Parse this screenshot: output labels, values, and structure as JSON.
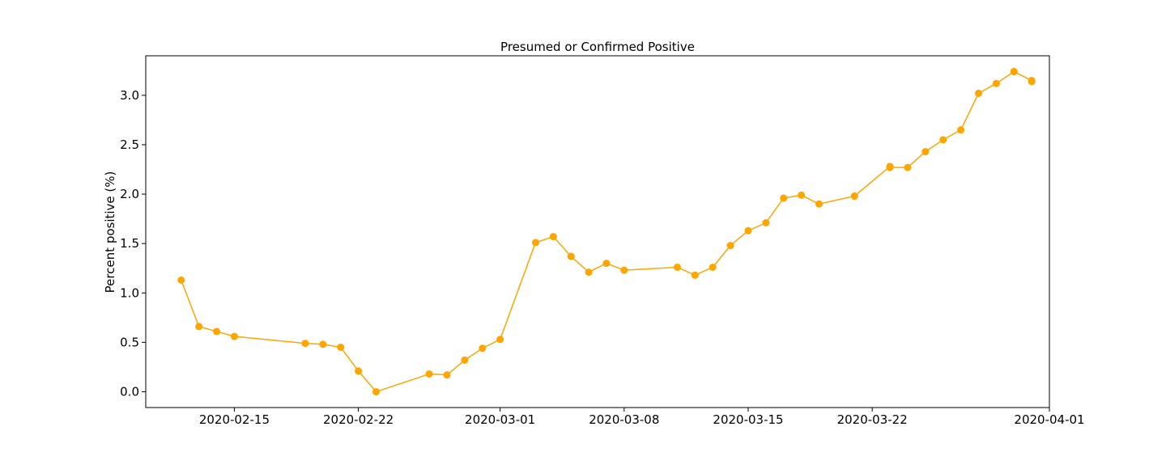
{
  "chart_data": {
    "type": "line",
    "title": "Presumed or Confirmed Positive",
    "xlabel": "",
    "ylabel": "Percent positive (%)",
    "x_axis_type": "date",
    "xlim": [
      "2020-02-10",
      "2020-04-01"
    ],
    "ylim": [
      -0.16,
      3.4
    ],
    "x_ticks": [
      "2020-02-15",
      "2020-02-22",
      "2020-03-01",
      "2020-03-08",
      "2020-03-15",
      "2020-03-22",
      "2020-04-01"
    ],
    "y_ticks": [
      "0.0",
      "0.5",
      "1.0",
      "1.5",
      "2.0",
      "2.5",
      "3.0"
    ],
    "grid": false,
    "legend": "none",
    "series": [
      {
        "color": "#ffa500",
        "marker": "circle",
        "x": [
          "2020-02-12",
          "2020-02-13",
          "2020-02-14",
          "2020-02-15",
          "2020-02-19",
          "2020-02-20",
          "2020-02-21",
          "2020-02-22",
          "2020-02-23",
          "2020-02-26",
          "2020-02-27",
          "2020-02-28",
          "2020-02-29",
          "2020-03-01",
          "2020-03-03",
          "2020-03-04",
          "2020-03-05",
          "2020-03-06",
          "2020-03-07",
          "2020-03-08",
          "2020-03-11",
          "2020-03-12",
          "2020-03-13",
          "2020-03-14",
          "2020-03-15",
          "2020-03-16",
          "2020-03-17",
          "2020-03-18",
          "2020-03-19",
          "2020-03-21",
          "2020-03-21",
          "2020-03-23",
          "2020-03-23",
          "2020-03-24",
          "2020-03-25",
          "2020-03-26",
          "2020-03-27",
          "2020-03-28",
          "2020-03-29",
          "2020-03-30",
          "2020-03-30",
          "2020-03-31",
          "2020-03-31"
        ],
        "y": [
          1.13,
          0.66,
          0.61,
          0.56,
          0.49,
          0.48,
          0.45,
          0.21,
          0.0,
          0.18,
          0.17,
          0.32,
          0.44,
          0.53,
          1.51,
          1.57,
          1.37,
          1.21,
          1.3,
          1.23,
          1.26,
          1.18,
          1.26,
          1.48,
          1.63,
          1.71,
          1.96,
          1.99,
          1.9,
          1.98,
          1.98,
          2.28,
          2.27,
          2.27,
          2.43,
          2.55,
          2.65,
          3.02,
          3.12,
          3.24,
          3.24,
          3.15,
          3.14
        ]
      }
    ]
  }
}
